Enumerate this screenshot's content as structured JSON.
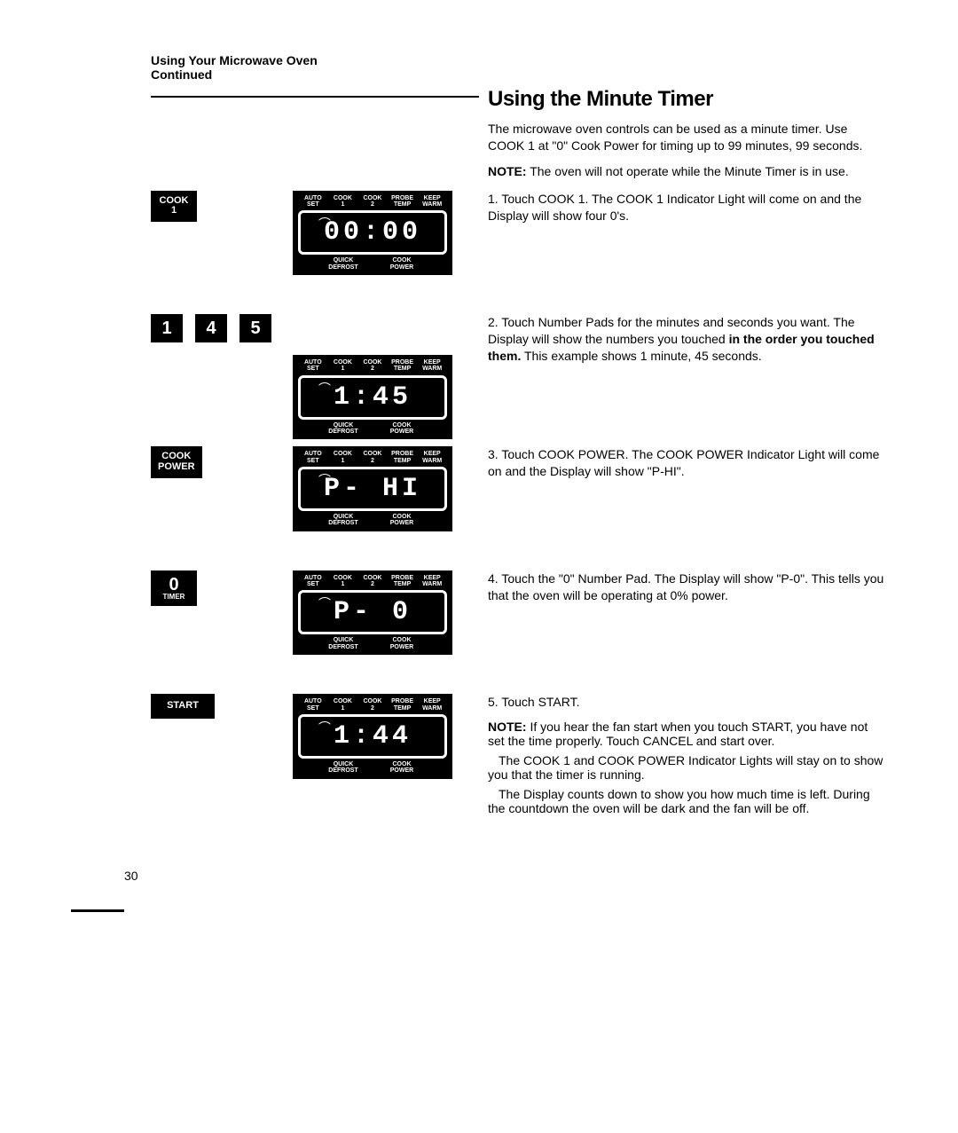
{
  "header": {
    "title": "Using Your Microwave Oven",
    "subtitle": "Continued"
  },
  "section_title": "Using the Minute Timer",
  "intro": "The microwave oven controls can be used as a minute timer. Use COOK 1 at \"0\" Cook Power for timing up to 99 minutes, 99 seconds.",
  "note_label": "NOTE:",
  "note_text": " The oven will not operate while the Minute Timer is in use.",
  "steps": [
    {
      "num": "1.",
      "text": " Touch COOK 1. The COOK 1 Indicator Light will come on and the Display will show four 0's.",
      "button_colA": [
        {
          "lines": [
            "COOK",
            "1"
          ],
          "style": "small"
        }
      ],
      "display": "00:00"
    },
    {
      "num": "2.",
      "text_a": " Touch Number Pads for the minutes and seconds you want. The Display will show the numbers you touched ",
      "bold": "in the order you touched them.",
      "text_b": " This example shows 1 minute, 45 seconds.",
      "button_colA": [
        {
          "lines": [
            "1"
          ],
          "style": "big"
        },
        {
          "lines": [
            "4"
          ],
          "style": "big"
        },
        {
          "lines": [
            "5"
          ],
          "style": "big"
        }
      ],
      "display": " 1:45"
    },
    {
      "num": "3.",
      "text": " Touch COOK POWER. The COOK POWER Indicator Light will come on and the Display will show \"P-HI\".",
      "button_colA": [
        {
          "lines": [
            "COOK",
            "POWER"
          ],
          "style": "small"
        }
      ],
      "display": "P- HI"
    },
    {
      "num": "4.",
      "text": " Touch the \"0\" Number Pad. The Display will show \"P-0\". This tells you that the oven will be operating at 0% power.",
      "button_colA": [
        {
          "lines_big": "0",
          "lines_sm": "TIMER",
          "style": "bigsm"
        }
      ],
      "display": "P-  0"
    },
    {
      "num": "5.",
      "text": " Touch START.",
      "button_colA": [
        {
          "lines": [
            "START"
          ],
          "style": "wide"
        }
      ],
      "display": " 1:44",
      "post_note_label": "NOTE:",
      "post_note": " If you hear the fan start when you touch START, you have not set the time properly. Touch CANCEL and start over.",
      "post_p1": "The COOK 1 and COOK POWER Indicator Lights will stay on to show you that the timer is running.",
      "post_p2": "The Display counts down to show you how much time is left. During the countdown the oven will be dark and the fan will be off."
    }
  ],
  "panel_labels": {
    "top": [
      "AUTO\nSET",
      "COOK\n1",
      "COOK\n2",
      "PROBE\nTEMP",
      "KEEP\nWARM"
    ],
    "bottom_left": "QUICK\nDEFROST",
    "bottom_right": "COOK\nPOWER"
  },
  "page_number": "30"
}
